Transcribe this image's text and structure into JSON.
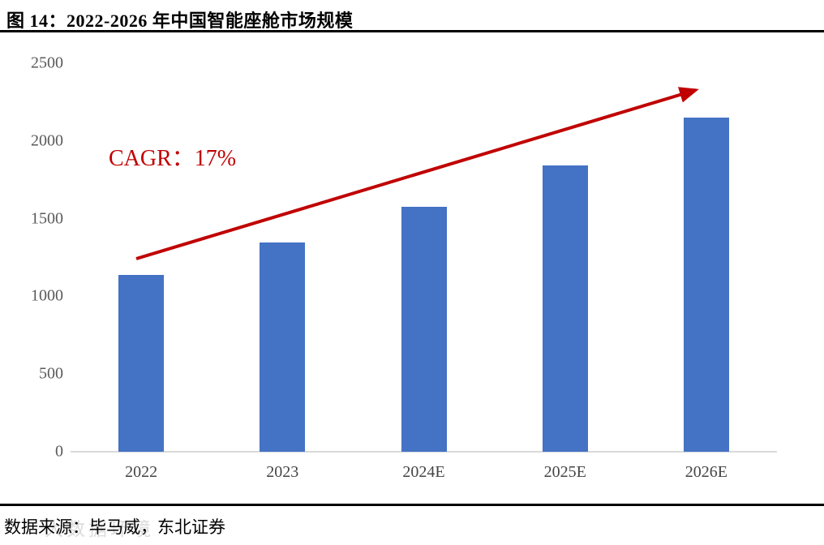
{
  "figure": {
    "title": "图 14：2022-2026 年中国智能座舱市场规模",
    "source": "数据来源：毕马威，东北证券",
    "watermark": "大数据环境"
  },
  "chart_data": {
    "type": "bar",
    "title": "2022-2026 年中国智能座舱市场规模",
    "categories": [
      "2022",
      "2023",
      "2024E",
      "2025E",
      "2026E"
    ],
    "values": [
      1140,
      1345,
      1575,
      1840,
      2150
    ],
    "xlabel": "",
    "ylabel": "",
    "ylim": [
      0,
      2500
    ],
    "yticks": [
      0,
      500,
      1000,
      1500,
      2000,
      2500
    ],
    "grid": false,
    "legend": "none",
    "annotation": "CAGR：17%",
    "annotation_color": "#c00000",
    "bar_color": "#4472c4",
    "trend_arrow_color": "#c00000",
    "axis_line_color": "#d9d9d9",
    "tick_label_color": "#595959"
  }
}
